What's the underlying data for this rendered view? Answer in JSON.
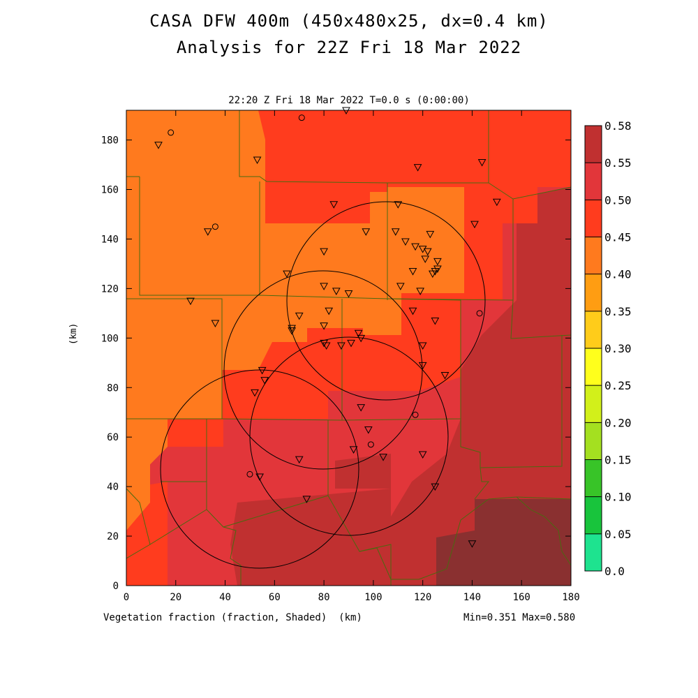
{
  "title_line1": "CASA DFW 400m (450x480x25, dx=0.4 km)",
  "title_line2": "Analysis for 22Z Fri 18 Mar 2022",
  "subtitle": "22:20 Z Fri 18 Mar 2022   T=0.0 s (0:00:00)",
  "x_axis": {
    "ticks": [
      "0",
      "20",
      "40",
      "60",
      "80",
      "100",
      "120",
      "140",
      "160",
      "180"
    ],
    "label": "(km)"
  },
  "y_axis": {
    "ticks": [
      "0",
      "20",
      "40",
      "60",
      "80",
      "100",
      "120",
      "140",
      "160",
      "180"
    ],
    "label": "(km)"
  },
  "field_label": "Vegetation fraction (fraction, Shaded)",
  "stats": "Min=0.351 Max=0.580",
  "colorbar": {
    "levels": [
      "0.0",
      "0.05",
      "0.10",
      "0.15",
      "0.20",
      "0.25",
      "0.30",
      "0.35",
      "0.40",
      "0.45",
      "0.50",
      "0.55",
      "0.58"
    ],
    "colors": [
      "#1ee38f",
      "#18c43c",
      "#38c428",
      "#a4e020",
      "#d2f01a",
      "#ffff1c",
      "#ffcc1a",
      "#ff9d12",
      "#ff7a1e",
      "#ff3c1e",
      "#e2363a",
      "#c03030",
      "#8a3030"
    ]
  },
  "chart_data": {
    "type": "heatmap",
    "variable": "Vegetation fraction",
    "units": "fraction",
    "xlim": [
      0,
      180
    ],
    "ylim": [
      0,
      192
    ],
    "min": 0.351,
    "max": 0.58,
    "radar_coverage_circles": [
      {
        "cx": 80,
        "cy": 88,
        "r": 40
      },
      {
        "cx": 105,
        "cy": 116,
        "r": 40
      },
      {
        "cx": 100,
        "cy": 62,
        "r": 40
      },
      {
        "cx": 56,
        "cy": 48,
        "r": 40
      }
    ],
    "stations_triangles": [
      [
        13,
        178
      ],
      [
        53,
        172
      ],
      [
        118,
        169
      ],
      [
        144,
        171
      ],
      [
        150,
        155
      ],
      [
        84,
        154
      ],
      [
        110,
        154
      ],
      [
        141,
        146
      ],
      [
        33,
        143
      ],
      [
        97,
        143
      ],
      [
        109,
        143
      ],
      [
        123,
        142
      ],
      [
        113,
        139
      ],
      [
        80,
        135
      ],
      [
        117,
        137
      ],
      [
        120,
        136
      ],
      [
        122,
        135
      ],
      [
        121,
        132
      ],
      [
        126,
        131
      ],
      [
        126,
        128
      ],
      [
        124,
        126
      ],
      [
        116,
        127
      ],
      [
        125,
        127
      ],
      [
        65,
        126
      ],
      [
        111,
        121
      ],
      [
        80,
        121
      ],
      [
        85,
        119
      ],
      [
        90,
        118
      ],
      [
        119,
        119
      ],
      [
        70,
        109
      ],
      [
        82,
        111
      ],
      [
        116,
        111
      ],
      [
        125,
        107
      ],
      [
        26,
        115
      ],
      [
        36,
        106
      ],
      [
        80,
        105
      ],
      [
        67,
        104
      ],
      [
        67,
        103
      ],
      [
        94,
        102
      ],
      [
        95,
        100
      ],
      [
        91,
        98
      ],
      [
        80,
        98
      ],
      [
        81,
        97
      ],
      [
        87,
        97
      ],
      [
        120,
        97
      ],
      [
        120,
        89
      ],
      [
        129,
        85
      ],
      [
        55,
        87
      ],
      [
        56,
        83
      ],
      [
        52,
        78
      ],
      [
        95,
        72
      ],
      [
        98,
        63
      ],
      [
        92,
        55
      ],
      [
        70,
        51
      ],
      [
        104,
        52
      ],
      [
        120,
        53
      ],
      [
        125,
        40
      ],
      [
        54,
        44
      ],
      [
        73,
        35
      ],
      [
        140,
        17
      ],
      [
        89,
        192
      ]
    ],
    "stations_circles": [
      [
        18,
        183
      ],
      [
        36,
        145
      ],
      [
        71,
        189
      ],
      [
        143,
        110
      ],
      [
        117,
        69
      ],
      [
        99,
        57
      ],
      [
        50,
        45
      ]
    ]
  }
}
